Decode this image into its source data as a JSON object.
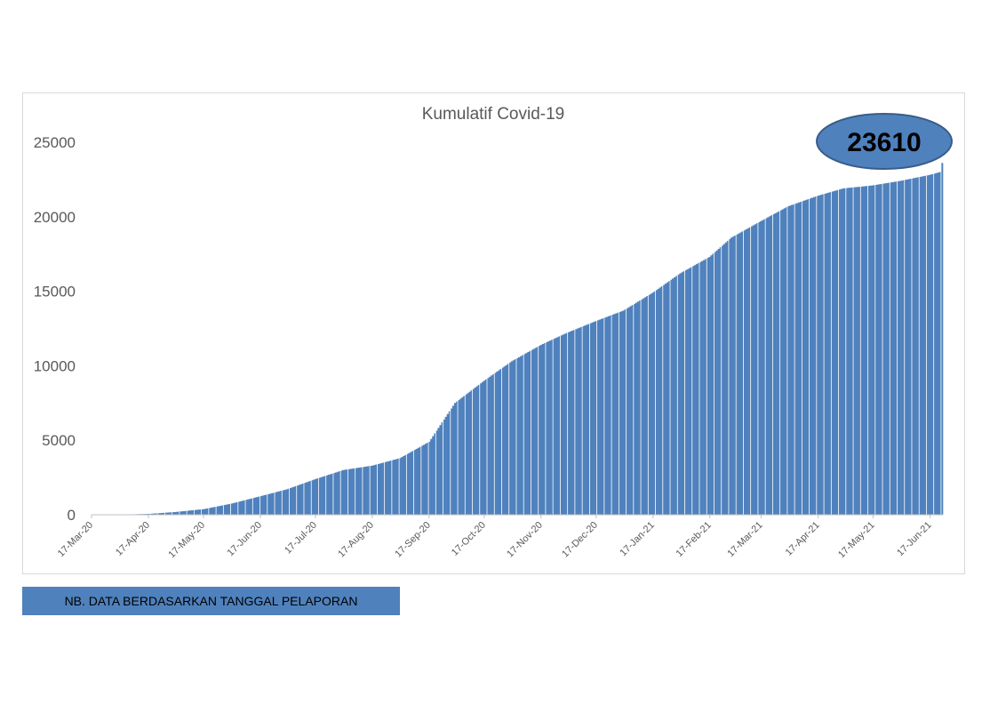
{
  "chart_data": {
    "type": "bar",
    "title": "Kumulatif Covid-19",
    "xlabel": "",
    "ylabel": "",
    "ylim": [
      0,
      25000
    ],
    "yticks": [
      0,
      5000,
      10000,
      15000,
      20000,
      25000
    ],
    "xticks": [
      "17-Mar-20",
      "17-Apr-20",
      "17-May-20",
      "17-Jun-20",
      "17-Jul-20",
      "17-Aug-20",
      "17-Sep-20",
      "17-Oct-20",
      "17-Nov-20",
      "17-Dec-20",
      "17-Jan-21",
      "17-Feb-21",
      "17-Mar-21",
      "17-Apr-21",
      "17-May-21",
      "17-Jun-21"
    ],
    "x_start": "2020-03-17",
    "x_end": "2021-06-24",
    "bar_color": "#4f81bd",
    "series": [
      {
        "points": [
          [
            "2020-03-17",
            0
          ],
          [
            "2020-04-01",
            5
          ],
          [
            "2020-04-17",
            60
          ],
          [
            "2020-05-01",
            180
          ],
          [
            "2020-05-17",
            380
          ],
          [
            "2020-06-01",
            750
          ],
          [
            "2020-06-17",
            1250
          ],
          [
            "2020-07-01",
            1700
          ],
          [
            "2020-07-17",
            2400
          ],
          [
            "2020-08-01",
            3000
          ],
          [
            "2020-08-17",
            3300
          ],
          [
            "2020-09-01",
            3800
          ],
          [
            "2020-09-17",
            4900
          ],
          [
            "2020-10-01",
            7500
          ],
          [
            "2020-10-17",
            9000
          ],
          [
            "2020-11-01",
            10300
          ],
          [
            "2020-11-17",
            11400
          ],
          [
            "2020-12-01",
            12200
          ],
          [
            "2020-12-17",
            13000
          ],
          [
            "2021-01-01",
            13700
          ],
          [
            "2021-01-17",
            14900
          ],
          [
            "2021-02-01",
            16200
          ],
          [
            "2021-02-17",
            17300
          ],
          [
            "2021-03-01",
            18600
          ],
          [
            "2021-03-17",
            19700
          ],
          [
            "2021-04-01",
            20700
          ],
          [
            "2021-04-17",
            21400
          ],
          [
            "2021-05-01",
            21900
          ],
          [
            "2021-05-17",
            22100
          ],
          [
            "2021-06-01",
            22400
          ],
          [
            "2021-06-17",
            22800
          ],
          [
            "2021-06-23",
            23000
          ],
          [
            "2021-06-24",
            23610
          ]
        ]
      }
    ],
    "callout": {
      "text": "23610",
      "fill": "#4f81bd",
      "stroke": "#385d8a"
    }
  },
  "note": {
    "text": "NB. DATA BERDASARKAN TANGGAL PELAPORAN",
    "bg": "#4f81bd"
  }
}
